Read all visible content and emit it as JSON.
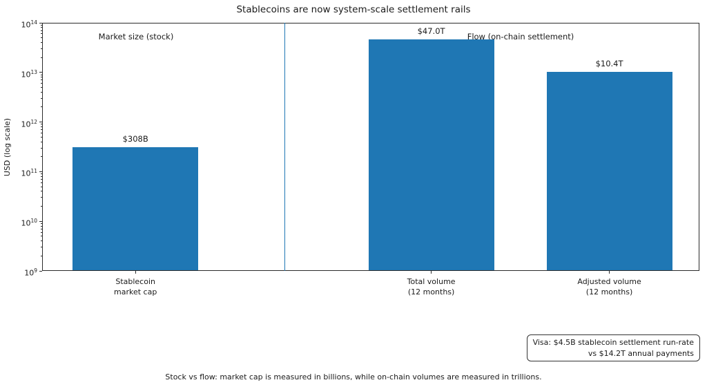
{
  "chart_data": {
    "type": "bar",
    "title": "Stablecoins are now system-scale settlement rails",
    "ylabel": "USD (log scale)",
    "yscale": "log",
    "ylim": [
      1000000000,
      100000000000000
    ],
    "y_tick_exponents": [
      9,
      10,
      11,
      12,
      13,
      14
    ],
    "categories": [
      "Stablecoin\nmarket cap",
      "Total volume\n(12 months)",
      "Adjusted volume\n(12 months)"
    ],
    "values": [
      308000000000,
      47000000000000,
      10400000000000
    ],
    "bar_labels": [
      "$308B",
      "$47.0T",
      "$10.4T"
    ],
    "bar_color": "#1f77b4",
    "divider_color": "#1f77b4",
    "annotations": [
      {
        "id": "stock",
        "text": "Market size (stock)"
      },
      {
        "id": "flow",
        "text": "Flow (on-chain settlement)"
      }
    ],
    "note_box": {
      "lines": [
        "Visa: $4.5B stablecoin settlement run-rate",
        "vs $14.2T annual payments"
      ]
    },
    "caption": "Stock vs flow: market cap is measured in billions, while on-chain volumes are measured in trillions.",
    "grid": false,
    "legend": "none"
  }
}
